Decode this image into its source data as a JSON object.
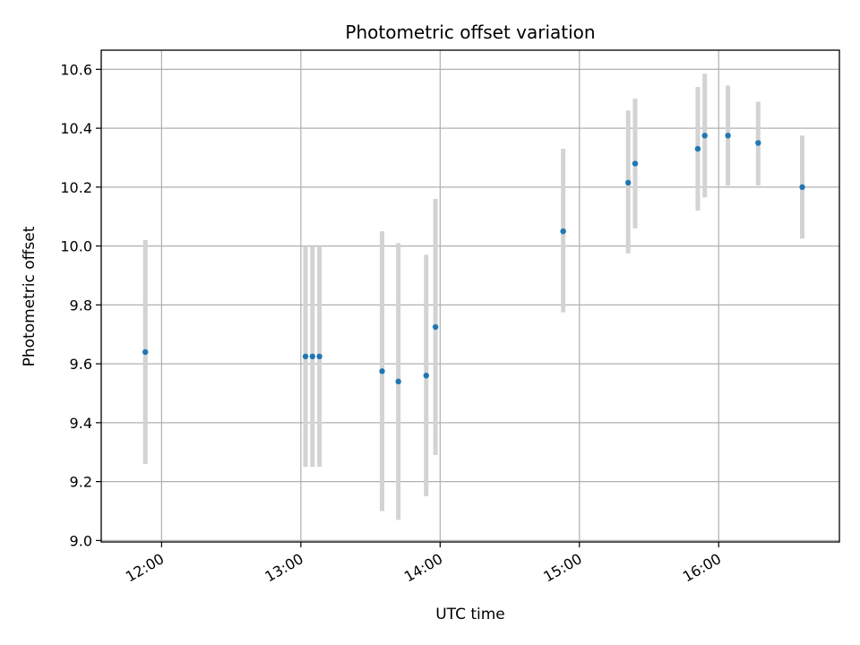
{
  "chart_data": {
    "type": "scatter",
    "title": "Photometric offset variation",
    "xlabel": "UTC time",
    "ylabel": "Photometric offset",
    "x_axis_type": "time",
    "xlim": [
      "11:34",
      "16:52"
    ],
    "ylim": [
      8.995,
      10.665
    ],
    "x_ticks": [
      "12:00",
      "13:00",
      "14:00",
      "15:00",
      "16:00"
    ],
    "y_ticks": [
      "9.0",
      "9.2",
      "9.4",
      "9.6",
      "9.8",
      "10.0",
      "10.2",
      "10.4",
      "10.6"
    ],
    "grid": true,
    "legend": "none",
    "point_color": "#1f77b4",
    "errorbar_color": "#d3d3d3",
    "series": [
      {
        "points": [
          {
            "x": "11:53",
            "y": 9.64,
            "ymin": 9.26,
            "ymax": 10.02
          },
          {
            "x": "13:02",
            "y": 9.625,
            "ymin": 9.25,
            "ymax": 10.0
          },
          {
            "x": "13:05",
            "y": 9.625,
            "ymin": 9.25,
            "ymax": 10.0
          },
          {
            "x": "13:08",
            "y": 9.625,
            "ymin": 9.25,
            "ymax": 10.0
          },
          {
            "x": "13:35",
            "y": 9.575,
            "ymin": 9.1,
            "ymax": 10.05
          },
          {
            "x": "13:42",
            "y": 9.54,
            "ymin": 9.07,
            "ymax": 10.01
          },
          {
            "x": "13:54",
            "y": 9.56,
            "ymin": 9.15,
            "ymax": 9.97
          },
          {
            "x": "13:58",
            "y": 9.725,
            "ymin": 9.29,
            "ymax": 10.16
          },
          {
            "x": "14:53",
            "y": 10.05,
            "ymin": 9.775,
            "ymax": 10.33
          },
          {
            "x": "15:21",
            "y": 10.215,
            "ymin": 9.975,
            "ymax": 10.46
          },
          {
            "x": "15:24",
            "y": 10.28,
            "ymin": 10.06,
            "ymax": 10.5
          },
          {
            "x": "15:51",
            "y": 10.33,
            "ymin": 10.12,
            "ymax": 10.54
          },
          {
            "x": "15:54",
            "y": 10.375,
            "ymin": 10.165,
            "ymax": 10.585
          },
          {
            "x": "16:04",
            "y": 10.375,
            "ymin": 10.205,
            "ymax": 10.545
          },
          {
            "x": "16:17",
            "y": 10.35,
            "ymin": 10.205,
            "ymax": 10.49
          },
          {
            "x": "16:36",
            "y": 10.2,
            "ymin": 10.025,
            "ymax": 10.375
          }
        ]
      }
    ]
  }
}
